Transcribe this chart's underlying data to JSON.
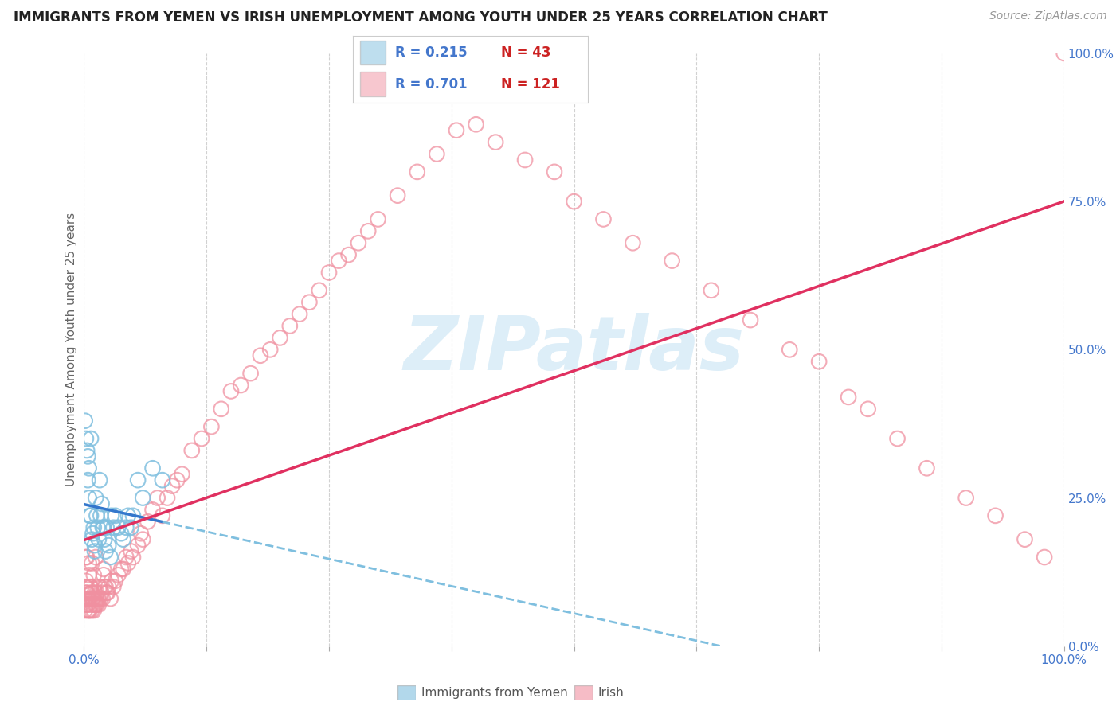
{
  "title": "IMMIGRANTS FROM YEMEN VS IRISH UNEMPLOYMENT AMONG YOUTH UNDER 25 YEARS CORRELATION CHART",
  "source": "Source: ZipAtlas.com",
  "ylabel": "Unemployment Among Youth under 25 years",
  "watermark": "ZIPatlas",
  "legend_blue_r": "R = 0.215",
  "legend_blue_n": "N = 43",
  "legend_pink_r": "R = 0.701",
  "legend_pink_n": "N = 121",
  "blue_color": "#7fbfdf",
  "pink_color": "#f090a0",
  "blue_line_color": "#3377cc",
  "blue_dash_color": "#7fbfdf",
  "pink_line_color": "#e03060",
  "grid_color": "#cccccc",
  "background": "#ffffff",
  "title_fontsize": 12,
  "source_fontsize": 10,
  "watermark_color": "#ddeef8",
  "watermark_fontsize": 68,
  "axis_label_color": "#4477cc",
  "n_label_color": "#cc2222",
  "blue_scatter_x": [
    0.001,
    0.002,
    0.003,
    0.004,
    0.004,
    0.005,
    0.005,
    0.006,
    0.007,
    0.007,
    0.008,
    0.009,
    0.01,
    0.011,
    0.011,
    0.012,
    0.013,
    0.014,
    0.015,
    0.016,
    0.017,
    0.018,
    0.019,
    0.02,
    0.021,
    0.022,
    0.023,
    0.025,
    0.027,
    0.028,
    0.03,
    0.032,
    0.035,
    0.038,
    0.04,
    0.043,
    0.045,
    0.048,
    0.05,
    0.055,
    0.06,
    0.07,
    0.08
  ],
  "blue_scatter_y": [
    0.38,
    0.35,
    0.33,
    0.32,
    0.28,
    0.3,
    0.25,
    0.22,
    0.35,
    0.22,
    0.18,
    0.19,
    0.2,
    0.17,
    0.16,
    0.25,
    0.22,
    0.2,
    0.18,
    0.28,
    0.22,
    0.24,
    0.2,
    0.2,
    0.18,
    0.16,
    0.2,
    0.17,
    0.15,
    0.22,
    0.2,
    0.22,
    0.2,
    0.19,
    0.18,
    0.2,
    0.22,
    0.2,
    0.22,
    0.28,
    0.25,
    0.3,
    0.28
  ],
  "pink_scatter_x": [
    0.001,
    0.001,
    0.001,
    0.002,
    0.002,
    0.002,
    0.003,
    0.003,
    0.003,
    0.004,
    0.004,
    0.004,
    0.005,
    0.005,
    0.005,
    0.006,
    0.006,
    0.006,
    0.007,
    0.007,
    0.007,
    0.008,
    0.008,
    0.008,
    0.009,
    0.009,
    0.01,
    0.01,
    0.01,
    0.011,
    0.011,
    0.012,
    0.012,
    0.013,
    0.013,
    0.014,
    0.015,
    0.015,
    0.016,
    0.017,
    0.018,
    0.019,
    0.02,
    0.021,
    0.022,
    0.023,
    0.024,
    0.025,
    0.027,
    0.028,
    0.03,
    0.032,
    0.035,
    0.038,
    0.04,
    0.043,
    0.045,
    0.048,
    0.05,
    0.055,
    0.058,
    0.06,
    0.065,
    0.07,
    0.075,
    0.08,
    0.085,
    0.09,
    0.095,
    0.1,
    0.11,
    0.12,
    0.13,
    0.14,
    0.15,
    0.16,
    0.17,
    0.18,
    0.19,
    0.2,
    0.21,
    0.22,
    0.23,
    0.24,
    0.25,
    0.26,
    0.27,
    0.28,
    0.29,
    0.3,
    0.32,
    0.34,
    0.36,
    0.38,
    0.4,
    0.42,
    0.45,
    0.48,
    0.5,
    0.53,
    0.56,
    0.6,
    0.64,
    0.68,
    0.72,
    0.75,
    0.78,
    0.8,
    0.83,
    0.86,
    0.9,
    0.93,
    0.96,
    0.98,
    1.0,
    0.002,
    0.003,
    0.005,
    0.008,
    0.012,
    0.02
  ],
  "pink_scatter_y": [
    0.1,
    0.08,
    0.06,
    0.09,
    0.07,
    0.11,
    0.09,
    0.07,
    0.1,
    0.07,
    0.08,
    0.06,
    0.12,
    0.08,
    0.06,
    0.1,
    0.08,
    0.06,
    0.09,
    0.07,
    0.1,
    0.08,
    0.06,
    0.09,
    0.07,
    0.08,
    0.12,
    0.08,
    0.06,
    0.09,
    0.07,
    0.08,
    0.07,
    0.09,
    0.07,
    0.08,
    0.07,
    0.08,
    0.1,
    0.08,
    0.09,
    0.08,
    0.12,
    0.1,
    0.1,
    0.09,
    0.09,
    0.1,
    0.08,
    0.11,
    0.1,
    0.11,
    0.12,
    0.13,
    0.13,
    0.15,
    0.14,
    0.16,
    0.15,
    0.17,
    0.19,
    0.18,
    0.21,
    0.23,
    0.25,
    0.22,
    0.25,
    0.27,
    0.28,
    0.29,
    0.33,
    0.35,
    0.37,
    0.4,
    0.43,
    0.44,
    0.46,
    0.49,
    0.5,
    0.52,
    0.54,
    0.56,
    0.58,
    0.6,
    0.63,
    0.65,
    0.66,
    0.68,
    0.7,
    0.72,
    0.76,
    0.8,
    0.83,
    0.87,
    0.88,
    0.85,
    0.82,
    0.8,
    0.75,
    0.72,
    0.68,
    0.65,
    0.6,
    0.55,
    0.5,
    0.48,
    0.42,
    0.4,
    0.35,
    0.3,
    0.25,
    0.22,
    0.18,
    0.15,
    1.0,
    0.15,
    0.15,
    0.14,
    0.14,
    0.15,
    0.13
  ]
}
